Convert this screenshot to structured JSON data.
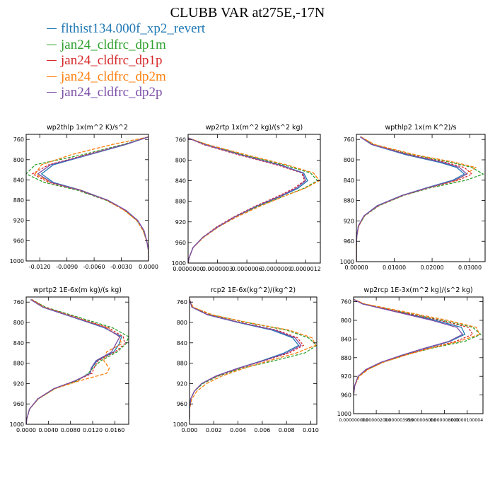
{
  "title": "CLUBB VAR at275E,-17N",
  "legend": [
    {
      "label": "flthist134.000f_xp2_revert",
      "color": "#1f77b4"
    },
    {
      "label": "jan24_cldfrc_dp1m",
      "color": "#2ca02c"
    },
    {
      "label": "jan24_cldfrc_dp1p",
      "color": "#d62728"
    },
    {
      "label": "jan24_cldfrc_dp2m",
      "color": "#ff7f0e"
    },
    {
      "label": "jan24_cldfrc_dp2p",
      "color": "#7b4fa8"
    }
  ],
  "chart_data": [
    {
      "type": "line",
      "title": "wp2thlp   1x(m^2 K)/s^2",
      "xlim": [
        -0.0135,
        0.0
      ],
      "ylim": [
        1000,
        750
      ],
      "xticks": [
        -0.012,
        -0.009,
        -0.006,
        -0.003,
        0.0
      ],
      "xtick_labels": [
        "-0.0120",
        "-0.0090",
        "-0.0060",
        "-0.0030",
        "0.0000"
      ],
      "yticks": [
        760,
        800,
        840,
        880,
        920,
        960,
        1000
      ],
      "ytick_labels": [
        "760",
        "800",
        "840",
        "880",
        "920",
        "960",
        "1000"
      ],
      "grid": false,
      "y": [
        755,
        770,
        790,
        810,
        828,
        845,
        860,
        880,
        900,
        920,
        940,
        960,
        980,
        1000
      ],
      "series": [
        {
          "values": [
            0.0,
            -0.0025,
            -0.0065,
            -0.0105,
            -0.0118,
            -0.0105,
            -0.0075,
            -0.0045,
            -0.0025,
            -0.0012,
            -0.0005,
            -0.0002,
            0.0,
            0.0
          ]
        },
        {
          "values": [
            0.0,
            -0.0028,
            -0.0072,
            -0.0125,
            -0.0135,
            -0.0115,
            -0.0079,
            -0.0047,
            -0.0026,
            -0.0013,
            -0.0006,
            -0.0002,
            0.0,
            0.0
          ]
        },
        {
          "values": [
            0.0,
            -0.0026,
            -0.0068,
            -0.011,
            -0.0128,
            -0.011,
            -0.0077,
            -0.0046,
            -0.0026,
            -0.0012,
            -0.0005,
            -0.0002,
            0.0,
            0.0
          ]
        },
        {
          "values": [
            0.0,
            -0.004,
            -0.0085,
            -0.0118,
            -0.0125,
            -0.0108,
            -0.0075,
            -0.0046,
            -0.0027,
            -0.0013,
            -0.0006,
            -0.0002,
            0.0,
            0.0
          ]
        },
        {
          "values": [
            0.0,
            -0.0026,
            -0.0066,
            -0.0108,
            -0.0122,
            -0.0107,
            -0.0076,
            -0.0045,
            -0.0025,
            -0.0012,
            -0.0005,
            -0.0002,
            0.0,
            0.0
          ]
        }
      ]
    },
    {
      "type": "line",
      "title": "wp2rtp   1x(m^2 kg)/(s^2 kg)",
      "xlim": [
        0.0,
        1.35e-06
      ],
      "ylim": [
        1000,
        750
      ],
      "xticks": [
        0.0,
        3e-07,
        6e-07,
        9e-07,
        1.2e-06
      ],
      "xtick_labels": [
        "0.0000000",
        "0.0000003",
        "0.0000006",
        "0.0000009",
        "0.0000012"
      ],
      "yticks": [
        760,
        800,
        840,
        880,
        920,
        960,
        1000
      ],
      "ytick_labels": [
        "760",
        "800",
        "840",
        "880",
        "920",
        "960",
        "1000"
      ],
      "grid": false,
      "y": [
        757,
        770,
        790,
        810,
        825,
        840,
        855,
        870,
        890,
        910,
        930,
        950,
        970,
        990,
        1000
      ],
      "series": [
        {
          "values": [
            0.0,
            1.8e-07,
            5.5e-07,
            9.5e-07,
            1.18e-06,
            1.22e-06,
            1.12e-06,
            9.5e-07,
            7e-07,
            4.8e-07,
            3e-07,
            1.5e-07,
            5e-08,
            1e-08,
            0.0
          ]
        },
        {
          "values": [
            0.0,
            1.9e-07,
            5.7e-07,
            9.9e-07,
            1.25e-06,
            1.32e-06,
            1.18e-06,
            9.8e-07,
            7.1e-07,
            4.8e-07,
            3e-07,
            1.5e-07,
            5e-08,
            1e-08,
            0.0
          ]
        },
        {
          "values": [
            0.0,
            1.6e-07,
            5.2e-07,
            9.2e-07,
            1.16e-06,
            1.19e-06,
            1.08e-06,
            9.2e-07,
            6.8e-07,
            4.7e-07,
            2.9e-07,
            1.5e-07,
            5e-08,
            1e-08,
            0.0
          ]
        },
        {
          "values": [
            0.0,
            2e-07,
            6e-07,
            1.02e-06,
            1.28e-06,
            1.34e-06,
            1.19e-06,
            9.8e-07,
            7.3e-07,
            5e-07,
            3.1e-07,
            1.6e-07,
            5e-08,
            1e-08,
            0.0
          ]
        },
        {
          "values": [
            0.0,
            1.7e-07,
            5.4e-07,
            9.4e-07,
            1.17e-06,
            1.2e-06,
            1.1e-06,
            9.4e-07,
            6.9e-07,
            4.8e-07,
            3e-07,
            1.5e-07,
            5e-08,
            1e-08,
            0.0
          ]
        }
      ]
    },
    {
      "type": "line",
      "title": "wpthlp2   1x(m K^2)/s",
      "xlim": [
        0.0,
        0.034
      ],
      "ylim": [
        1000,
        750
      ],
      "xticks": [
        0.0,
        0.01,
        0.02,
        0.03
      ],
      "xtick_labels": [
        "0.00000",
        "0.01000",
        "0.02000",
        "0.03000"
      ],
      "yticks": [
        760,
        800,
        840,
        880,
        920,
        960,
        1000
      ],
      "ytick_labels": [
        "760",
        "800",
        "840",
        "880",
        "920",
        "960",
        "1000"
      ],
      "grid": false,
      "y": [
        755,
        770,
        790,
        805,
        815,
        828,
        840,
        855,
        870,
        890,
        910,
        930,
        950,
        970,
        1000
      ],
      "series": [
        {
          "values": [
            0.001,
            0.004,
            0.013,
            0.022,
            0.0265,
            0.0285,
            0.0255,
            0.0185,
            0.012,
            0.0055,
            0.002,
            0.0005,
            0.0001,
            0.0,
            0.0
          ]
        },
        {
          "values": [
            0.0012,
            0.0045,
            0.0145,
            0.025,
            0.0305,
            0.0335,
            0.029,
            0.0195,
            0.0125,
            0.006,
            0.0022,
            0.0006,
            0.0001,
            0.0,
            0.0
          ]
        },
        {
          "values": [
            0.0011,
            0.0042,
            0.014,
            0.0235,
            0.0285,
            0.0305,
            0.027,
            0.019,
            0.0123,
            0.0058,
            0.0021,
            0.0006,
            0.0001,
            0.0,
            0.0
          ]
        },
        {
          "values": [
            0.0012,
            0.0048,
            0.0155,
            0.026,
            0.0315,
            0.029,
            0.0265,
            0.0188,
            0.0122,
            0.0057,
            0.0021,
            0.0006,
            0.0001,
            0.0,
            0.0
          ]
        },
        {
          "values": [
            0.001,
            0.0041,
            0.0135,
            0.0228,
            0.0272,
            0.0292,
            0.026,
            0.0187,
            0.0121,
            0.0056,
            0.002,
            0.0005,
            0.0001,
            0.0,
            0.0
          ]
        }
      ]
    },
    {
      "type": "line",
      "title": "wprtp2   1E-6x(m kg)/(s kg)",
      "xlim": [
        0.0,
        0.0185
      ],
      "ylim": [
        1000,
        750
      ],
      "xticks": [
        0.0,
        0.004,
        0.008,
        0.012,
        0.016
      ],
      "xtick_labels": [
        "0.0000",
        "0.0040",
        "0.0080",
        "0.0120",
        "0.0160"
      ],
      "yticks": [
        760,
        800,
        840,
        880,
        920,
        960,
        1000
      ],
      "ytick_labels": [
        "760",
        "800",
        "840",
        "880",
        "920",
        "960",
        "1000"
      ],
      "grid": false,
      "y": [
        755,
        770,
        790,
        810,
        828,
        842,
        858,
        875,
        890,
        900,
        915,
        930,
        950,
        970,
        990,
        1000
      ],
      "series": [
        {
          "values": [
            0.0008,
            0.003,
            0.0085,
            0.014,
            0.0172,
            0.0168,
            0.0158,
            0.0128,
            0.0118,
            0.0115,
            0.0088,
            0.005,
            0.0022,
            0.0006,
            0.0001,
            0.0
          ]
        },
        {
          "values": [
            0.001,
            0.0035,
            0.0095,
            0.0155,
            0.0185,
            0.018,
            0.0164,
            0.0135,
            0.012,
            0.0112,
            0.0092,
            0.0052,
            0.0022,
            0.0006,
            0.0001,
            0.0
          ]
        },
        {
          "values": [
            0.001,
            0.0033,
            0.009,
            0.0148,
            0.0175,
            0.0178,
            0.016,
            0.013,
            0.0122,
            0.0119,
            0.0088,
            0.005,
            0.0021,
            0.0006,
            0.0001,
            0.0
          ]
        },
        {
          "values": [
            0.0009,
            0.0032,
            0.0088,
            0.0145,
            0.0168,
            0.0172,
            0.0145,
            0.014,
            0.015,
            0.0145,
            0.0095,
            0.0052,
            0.0022,
            0.0006,
            0.0001,
            0.0
          ]
        },
        {
          "values": [
            0.0008,
            0.003,
            0.0086,
            0.0142,
            0.0169,
            0.0162,
            0.0154,
            0.0126,
            0.0117,
            0.0116,
            0.0087,
            0.005,
            0.0021,
            0.0006,
            0.0001,
            0.0
          ]
        }
      ]
    },
    {
      "type": "line",
      "title": "rcp2   1E-6x(kg^2)/(kg^2)",
      "xlim": [
        0.0,
        0.0105
      ],
      "ylim": [
        1000,
        750
      ],
      "xticks": [
        0.0,
        0.002,
        0.004,
        0.006,
        0.008,
        0.01
      ],
      "xtick_labels": [
        "0.000",
        "0.002",
        "0.004",
        "0.006",
        "0.008",
        "0.010"
      ],
      "yticks": [
        760,
        800,
        840,
        880,
        920,
        960,
        1000
      ],
      "ytick_labels": [
        "760",
        "800",
        "840",
        "880",
        "920",
        "960",
        "1000"
      ],
      "grid": false,
      "y": [
        755,
        770,
        785,
        800,
        815,
        830,
        845,
        860,
        875,
        890,
        905,
        920,
        935,
        950,
        970,
        990
      ],
      "series": [
        {
          "values": [
            0.0,
            0.0002,
            0.0015,
            0.004,
            0.0068,
            0.0085,
            0.009,
            0.0078,
            0.006,
            0.004,
            0.0022,
            0.001,
            0.0004,
            0.0001,
            0.0,
            0.0
          ]
        },
        {
          "values": [
            0.0,
            0.0002,
            0.0018,
            0.0047,
            0.008,
            0.0098,
            0.0105,
            0.0095,
            0.007,
            0.0043,
            0.0024,
            0.0011,
            0.0004,
            0.0001,
            0.0,
            0.0
          ]
        },
        {
          "values": [
            0.0,
            0.0002,
            0.0016,
            0.0042,
            0.0072,
            0.0089,
            0.0094,
            0.0082,
            0.0062,
            0.0041,
            0.0023,
            0.001,
            0.0004,
            0.0001,
            0.0,
            0.0
          ]
        },
        {
          "values": [
            0.0,
            0.0003,
            0.0019,
            0.0048,
            0.0082,
            0.0101,
            0.0104,
            0.0088,
            0.0066,
            0.0045,
            0.0027,
            0.0014,
            0.0006,
            0.0002,
            0.0,
            0.0
          ]
        },
        {
          "values": [
            0.0,
            0.0002,
            0.0015,
            0.0041,
            0.007,
            0.0087,
            0.0092,
            0.008,
            0.0061,
            0.004,
            0.0022,
            0.001,
            0.0004,
            0.0001,
            0.0,
            0.0
          ]
        }
      ]
    },
    {
      "type": "line",
      "title": "wp2rcp   1E-3x(m^2 kg)/(s^2 kg)",
      "xlim": [
        0.0,
        1.14e-05
      ],
      "ylim": [
        1000,
        750
      ],
      "xticks": [
        0.0,
        2e-06,
        4e-06,
        6e-06,
        8e-06,
        1e-05
      ],
      "xtick_labels": [
        "0.000000000",
        "0.000002000",
        "0.000003999",
        "0.000006000",
        "0.000008000",
        "0.0000100004"
      ],
      "yticks": [
        760,
        800,
        840,
        880,
        920,
        960,
        1000
      ],
      "ytick_labels": [
        "760",
        "800",
        "840",
        "880",
        "920",
        "960",
        "1000"
      ],
      "grid": false,
      "y": [
        755,
        765,
        780,
        800,
        815,
        830,
        845,
        860,
        875,
        890,
        905,
        920,
        940,
        960
      ],
      "series": [
        {
          "values": [
            0.0,
            8e-07,
            3.5e-06,
            7.2e-06,
            9.5e-06,
            9.8e-06,
            8.5e-06,
            6.3e-06,
            4.3e-06,
            2.5e-06,
            1.2e-06,
            4e-07,
            1e-07,
            0.0
          ]
        },
        {
          "values": [
            0.0,
            9e-07,
            3.8e-06,
            7.8e-06,
            1.05e-05,
            1.12e-05,
            9.8e-06,
            6.8e-06,
            4.5e-06,
            2.6e-06,
            1.2e-06,
            4e-07,
            1e-07,
            0.0
          ]
        },
        {
          "values": [
            0.0,
            9e-07,
            3.7e-06,
            7.6e-06,
            1.01e-05,
            1.05e-05,
            9e-06,
            6.6e-06,
            4.4e-06,
            2.5e-06,
            1.2e-06,
            4e-07,
            1e-07,
            0.0
          ]
        },
        {
          "values": [
            0.0,
            1e-06,
            4.2e-06,
            8.3e-06,
            1.08e-05,
            1.11e-05,
            9.3e-06,
            6.7e-06,
            4.5e-06,
            2.6e-06,
            1.3e-06,
            5e-07,
            1e-07,
            0.0
          ]
        },
        {
          "values": [
            0.0,
            8e-07,
            3.4e-06,
            6.9e-06,
            9.1e-06,
            9.6e-06,
            8.4e-06,
            6.2e-06,
            4.2e-06,
            2.4e-06,
            1.1e-06,
            4e-07,
            1e-07,
            0.0
          ]
        }
      ]
    }
  ]
}
